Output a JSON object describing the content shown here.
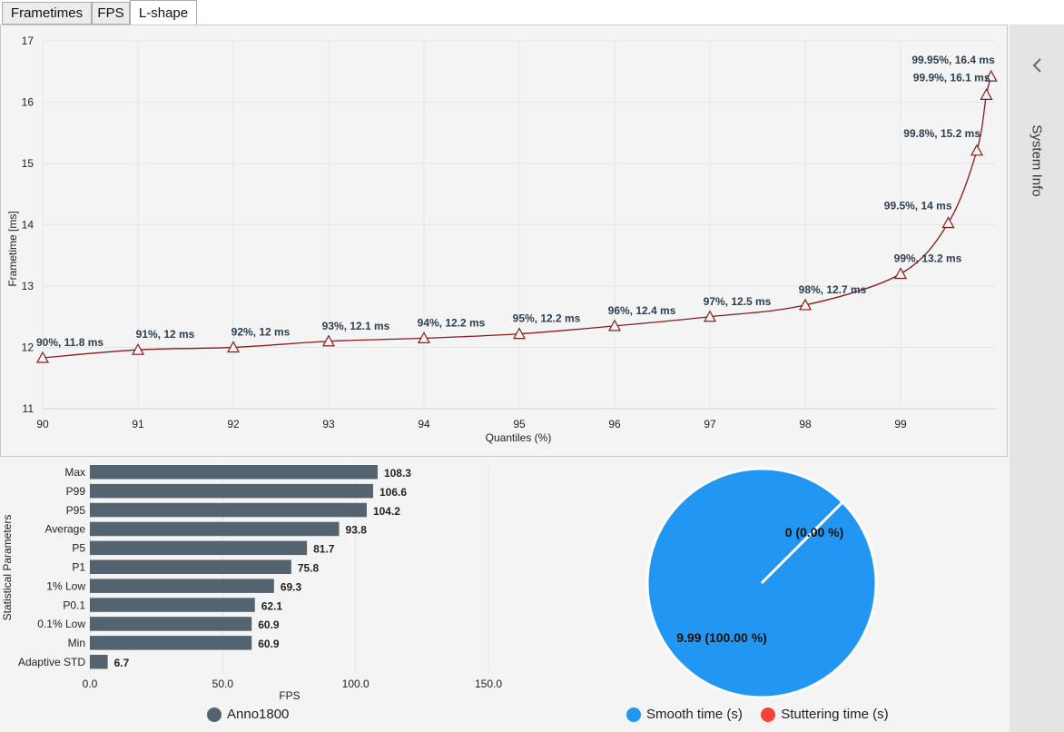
{
  "tabs": [
    {
      "label": "Frametimes",
      "active": false
    },
    {
      "label": "FPS",
      "active": false
    },
    {
      "label": "L-shape",
      "active": true
    }
  ],
  "sidebar": {
    "label": "System Info",
    "icon": "chevron-left-icon"
  },
  "colors": {
    "curve": "#8b1a1a",
    "bar": "#536370",
    "smooth": "#2196f3",
    "stutter": "#f44336"
  },
  "chart_data": [
    {
      "type": "line",
      "xlabel": "Quantiles (%)",
      "ylabel": "Frametime [ms]",
      "xlim": [
        90,
        100
      ],
      "ylim": [
        11,
        17
      ],
      "xticks": [
        "90",
        "91",
        "92",
        "93",
        "94",
        "95",
        "96",
        "97",
        "98",
        "99"
      ],
      "yticks": [
        "11",
        "12",
        "13",
        "14",
        "15",
        "16",
        "17"
      ],
      "grid": true,
      "points": [
        {
          "x": 90,
          "y": 11.83,
          "label": "90%, 11.8 ms"
        },
        {
          "x": 91,
          "y": 11.96,
          "label": "91%, 12 ms"
        },
        {
          "x": 92,
          "y": 12.0,
          "label": "92%, 12 ms"
        },
        {
          "x": 93,
          "y": 12.1,
          "label": "93%, 12.1 ms"
        },
        {
          "x": 94,
          "y": 12.15,
          "label": "94%, 12.2 ms"
        },
        {
          "x": 95,
          "y": 12.22,
          "label": "95%, 12.2 ms"
        },
        {
          "x": 96,
          "y": 12.35,
          "label": "96%, 12.4 ms"
        },
        {
          "x": 97,
          "y": 12.5,
          "label": "97%, 12.5 ms"
        },
        {
          "x": 98,
          "y": 12.69,
          "label": "98%, 12.7 ms"
        },
        {
          "x": 99,
          "y": 13.2,
          "label": "99%, 13.2 ms"
        },
        {
          "x": 99.5,
          "y": 14.03,
          "label": "99.5%, 14 ms"
        },
        {
          "x": 99.8,
          "y": 15.21,
          "label": "99.8%, 15.2 ms"
        },
        {
          "x": 99.9,
          "y": 16.12,
          "label": "99.9%, 16.1 ms"
        },
        {
          "x": 99.95,
          "y": 16.42,
          "label": "99.95%, 16.4 ms"
        }
      ]
    },
    {
      "type": "bar",
      "orientation": "horizontal",
      "xlabel": "FPS",
      "ylabel": "Statistical Parameters",
      "xlim": [
        0,
        180
      ],
      "xticks": [
        "0.0",
        "50.0",
        "100.0",
        "150.0"
      ],
      "categories": [
        "Max",
        "P99",
        "P95",
        "Average",
        "P5",
        "P1",
        "1% Low",
        "P0.1",
        "0.1% Low",
        "Min",
        "Adaptive STD"
      ],
      "values": [
        108.3,
        106.6,
        104.2,
        93.8,
        81.7,
        75.8,
        69.3,
        62.1,
        60.9,
        60.9,
        6.7
      ],
      "value_labels": [
        "108.3",
        "106.6",
        "104.2",
        "93.8",
        "81.7",
        "75.8",
        "69.3",
        "62.1",
        "60.9",
        "60.9",
        "6.7"
      ],
      "series": [
        {
          "name": "Anno1800",
          "color": "#536370"
        }
      ],
      "legend": "bottom"
    },
    {
      "type": "pie",
      "slices": [
        {
          "name": "Smooth time (s)",
          "value": 9.99,
          "label": "9.99 (100.00 %)",
          "color": "#2196f3"
        },
        {
          "name": "Stuttering time (s)",
          "value": 0,
          "label": "0 (0.00 %)",
          "color": "#f44336"
        }
      ],
      "legend": "bottom"
    }
  ]
}
